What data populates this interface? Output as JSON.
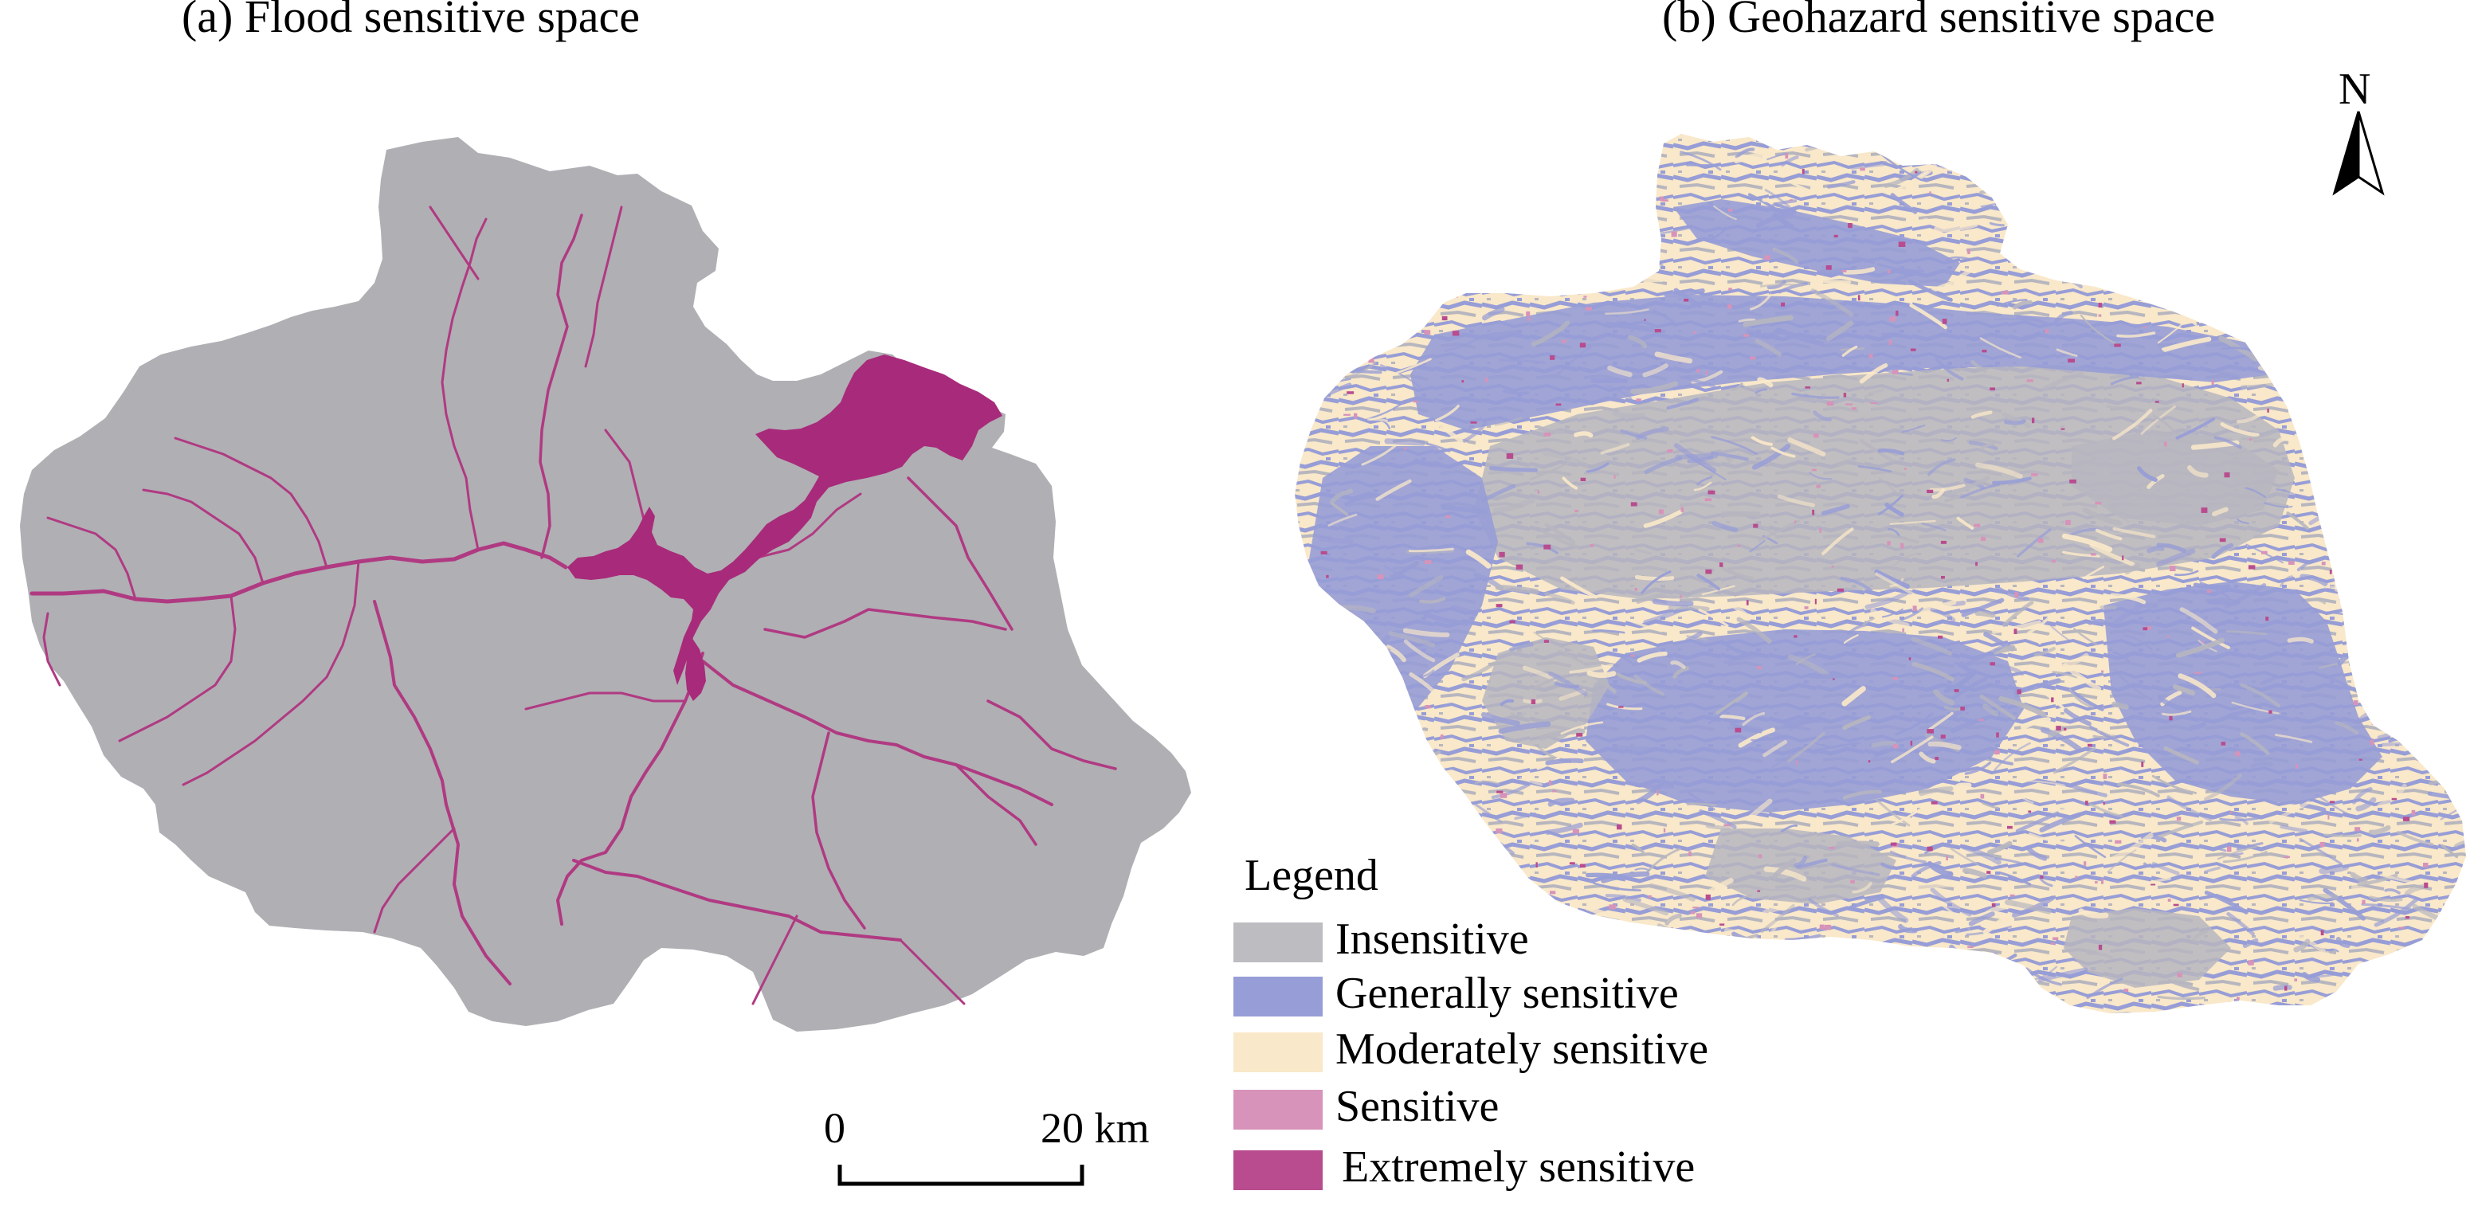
{
  "panels": {
    "a": {
      "title": "(a) Flood sensitive space"
    },
    "b": {
      "title": "(b) Geohazard sensitive space"
    }
  },
  "legend": {
    "title": "Legend",
    "items": [
      {
        "label": "Insensitive",
        "color": "#bcbcc1"
      },
      {
        "label": "Generally sensitive",
        "color": "#979dd6"
      },
      {
        "label": "Moderately sensitive",
        "color": "#f9e8c9"
      },
      {
        "label": "Sensitive",
        "color": "#d793b9"
      },
      {
        "label": "Extremely sensitive",
        "color": "#b84c8f"
      }
    ]
  },
  "scale_bar": {
    "start_label": "0",
    "end_label": "20 km"
  },
  "north_arrow": {
    "label": "N"
  },
  "colors": {
    "flood_base": "#b0afb4",
    "flood_river": "#b03a82",
    "flood_reservoir": "#a82a7a",
    "geo_gray": "#b7b6bf",
    "geo_blue": "#979dd6",
    "geo_cream": "#f9e8c9",
    "geo_pink": "#d793b9",
    "geo_magenta": "#b84c8f"
  }
}
